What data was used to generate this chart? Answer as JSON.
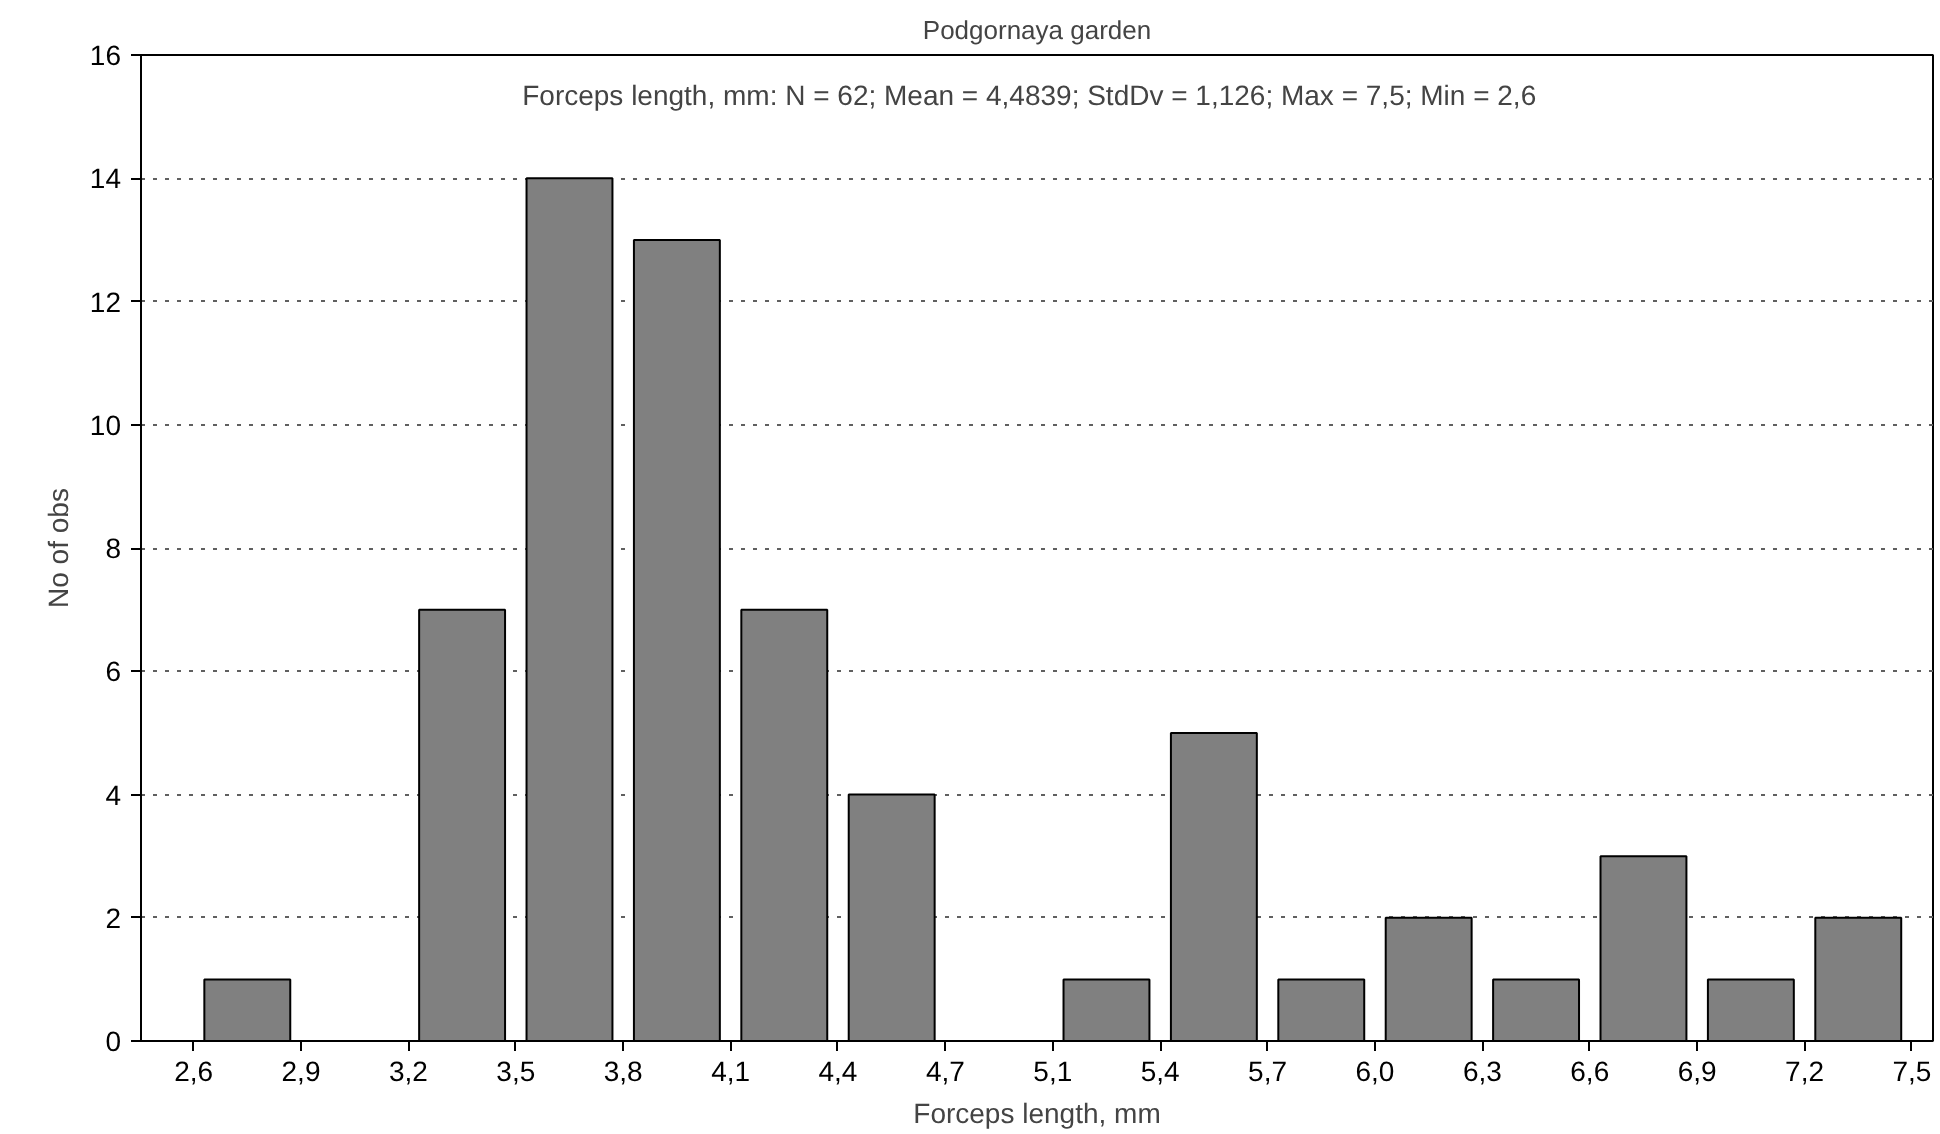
{
  "chart_data": {
    "type": "histogram",
    "title": "Podgornaya garden",
    "xlabel": "Forceps length, mm",
    "ylabel": "No of obs",
    "annotations": [
      "Forceps length, mm:   N = 62; Mean = 4,4839; StdDv = 1,126; Max = 7,5; Min = 2,6"
    ],
    "bins": [
      2.6,
      2.90625,
      3.2125,
      3.51875,
      3.825,
      4.13125,
      4.4375,
      4.74375,
      5.05,
      5.35625,
      5.6625,
      5.96875,
      6.275,
      6.58125,
      6.8875,
      7.19375,
      7.5
    ],
    "values": [
      1,
      0,
      7,
      14,
      13,
      7,
      4,
      0,
      1,
      5,
      1,
      2,
      1,
      3,
      1,
      2
    ],
    "color": "#808080",
    "xlim": [
      2.45,
      7.56
    ],
    "xticks": [
      {
        "value": 2.6,
        "label": "2,6"
      },
      {
        "value": 2.90625,
        "label": "2,9"
      },
      {
        "value": 3.2125,
        "label": "3,2"
      },
      {
        "value": 3.51875,
        "label": "3,5"
      },
      {
        "value": 3.825,
        "label": "3,8"
      },
      {
        "value": 4.13125,
        "label": "4,1"
      },
      {
        "value": 4.4375,
        "label": "4,4"
      },
      {
        "value": 4.74375,
        "label": "4,7"
      },
      {
        "value": 5.05,
        "label": "5,1"
      },
      {
        "value": 5.35625,
        "label": "5,4"
      },
      {
        "value": 5.6625,
        "label": "5,7"
      },
      {
        "value": 5.96875,
        "label": "6,0"
      },
      {
        "value": 6.275,
        "label": "6,3"
      },
      {
        "value": 6.58125,
        "label": "6,6"
      },
      {
        "value": 6.8875,
        "label": "6,9"
      },
      {
        "value": 7.19375,
        "label": "7,2"
      },
      {
        "value": 7.5,
        "label": "7,5"
      }
    ],
    "ylim": [
      0,
      16
    ],
    "yticks": [
      0,
      2,
      4,
      6,
      8,
      10,
      12,
      14,
      16
    ],
    "grid": "y"
  }
}
